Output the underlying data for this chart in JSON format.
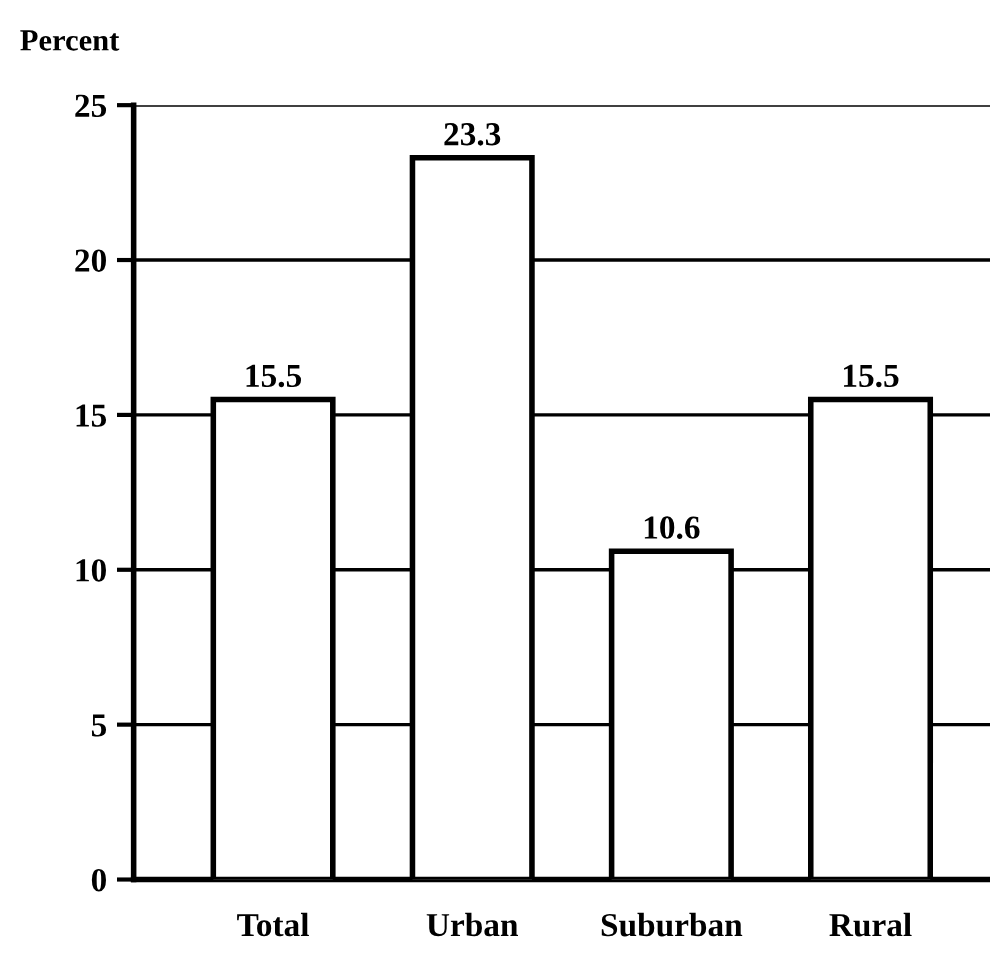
{
  "chart_data": {
    "type": "bar",
    "ylabel": "Percent",
    "categories": [
      "Total",
      "Urban",
      "Suburban",
      "Rural"
    ],
    "values": [
      15.5,
      23.3,
      10.6,
      15.5
    ],
    "color": "#ffffff",
    "ylim": [
      0,
      25
    ],
    "yticks": [
      0,
      5,
      10,
      15,
      20,
      25
    ],
    "grid": "y",
    "data_labels": true
  }
}
